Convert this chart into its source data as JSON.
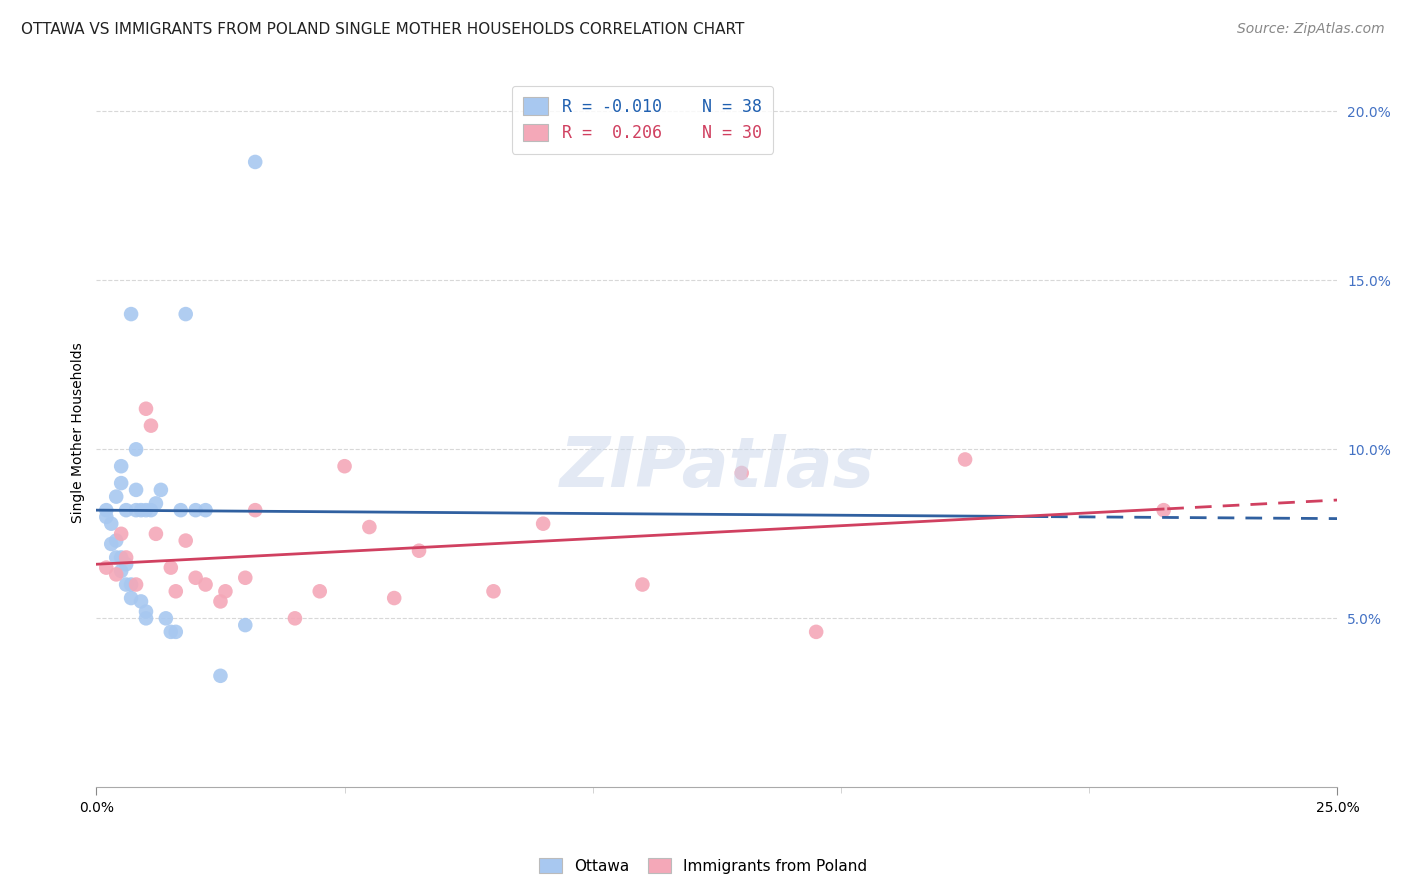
{
  "title": "OTTAWA VS IMMIGRANTS FROM POLAND SINGLE MOTHER HOUSEHOLDS CORRELATION CHART",
  "source": "Source: ZipAtlas.com",
  "ylabel": "Single Mother Households",
  "xlim": [
    0.0,
    0.25
  ],
  "ylim": [
    0.0,
    0.21
  ],
  "yticks": [
    0.05,
    0.1,
    0.15,
    0.2
  ],
  "ytick_labels": [
    "5.0%",
    "10.0%",
    "15.0%",
    "20.0%"
  ],
  "ottawa_R": -0.01,
  "ottawa_N": 38,
  "poland_R": 0.206,
  "poland_N": 30,
  "ottawa_x": [
    0.002,
    0.002,
    0.003,
    0.003,
    0.004,
    0.004,
    0.004,
    0.005,
    0.005,
    0.005,
    0.005,
    0.006,
    0.006,
    0.006,
    0.007,
    0.007,
    0.007,
    0.008,
    0.008,
    0.008,
    0.009,
    0.009,
    0.01,
    0.01,
    0.01,
    0.011,
    0.012,
    0.013,
    0.014,
    0.015,
    0.016,
    0.017,
    0.018,
    0.02,
    0.022,
    0.025,
    0.03,
    0.032
  ],
  "ottawa_y": [
    0.08,
    0.082,
    0.072,
    0.078,
    0.068,
    0.073,
    0.086,
    0.064,
    0.068,
    0.09,
    0.095,
    0.06,
    0.066,
    0.082,
    0.056,
    0.06,
    0.14,
    0.082,
    0.088,
    0.1,
    0.055,
    0.082,
    0.052,
    0.05,
    0.082,
    0.082,
    0.084,
    0.088,
    0.05,
    0.046,
    0.046,
    0.082,
    0.14,
    0.082,
    0.082,
    0.033,
    0.048,
    0.185
  ],
  "poland_x": [
    0.002,
    0.004,
    0.005,
    0.006,
    0.008,
    0.01,
    0.011,
    0.012,
    0.015,
    0.016,
    0.018,
    0.02,
    0.022,
    0.025,
    0.026,
    0.03,
    0.032,
    0.04,
    0.045,
    0.05,
    0.055,
    0.06,
    0.065,
    0.08,
    0.09,
    0.11,
    0.13,
    0.145,
    0.175,
    0.215
  ],
  "poland_y": [
    0.065,
    0.063,
    0.075,
    0.068,
    0.06,
    0.112,
    0.107,
    0.075,
    0.065,
    0.058,
    0.073,
    0.062,
    0.06,
    0.055,
    0.058,
    0.062,
    0.082,
    0.05,
    0.058,
    0.095,
    0.077,
    0.056,
    0.07,
    0.058,
    0.078,
    0.06,
    0.093,
    0.046,
    0.097,
    0.082
  ],
  "ottawa_color": "#a8c8f0",
  "poland_color": "#f4a8b8",
  "trendline_ottawa_color": "#3060a0",
  "trendline_poland_color": "#d04060",
  "background_color": "#ffffff",
  "grid_color": "#d8d8d8",
  "title_fontsize": 11,
  "source_fontsize": 10,
  "axis_fontsize": 10,
  "tick_fontsize": 10,
  "scatter_size": 110
}
